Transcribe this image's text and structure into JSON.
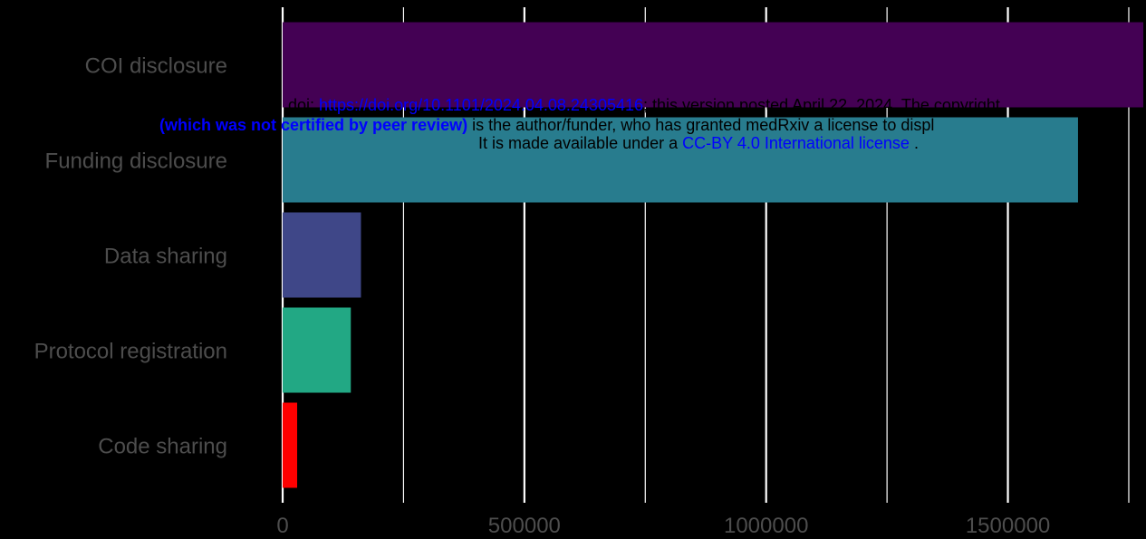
{
  "chart_data": {
    "type": "bar",
    "orientation": "horizontal",
    "categories": [
      "COI disclosure",
      "Funding disclosure",
      "Data sharing",
      "Protocol registration",
      "Code sharing"
    ],
    "values": [
      1780000,
      1645000,
      162000,
      141000,
      30000
    ],
    "colors": [
      "#440154",
      "#287c8e",
      "#3f4788",
      "#22a884",
      "#ff0000"
    ],
    "x_tick_labels": [
      "0",
      "500000",
      "1000000",
      "1500000"
    ],
    "x_ticks": [
      0,
      500000,
      1000000,
      1500000
    ],
    "xlim": [
      0,
      1780000
    ],
    "grid": true,
    "background": "#000000",
    "gridline_color": "#ffffff",
    "tick_label_color": "#4d4d4d",
    "title": "",
    "xlabel": "",
    "ylabel": ""
  },
  "watermark": {
    "line1_prefix": "doi: ",
    "line1_link": "https://doi.org/10.1101/2024.04.08.24305416",
    "line1_suffix": "; this version posted April 22, 2024. The copyright",
    "line2_bold": "(which was not certified by peer review)",
    "line2_rest": " is the author/funder, who has granted medRxiv a license to displ",
    "line3_prefix": "It is made available under a ",
    "line3_link": "CC-BY 4.0 International license",
    "line3_suffix": " ."
  }
}
